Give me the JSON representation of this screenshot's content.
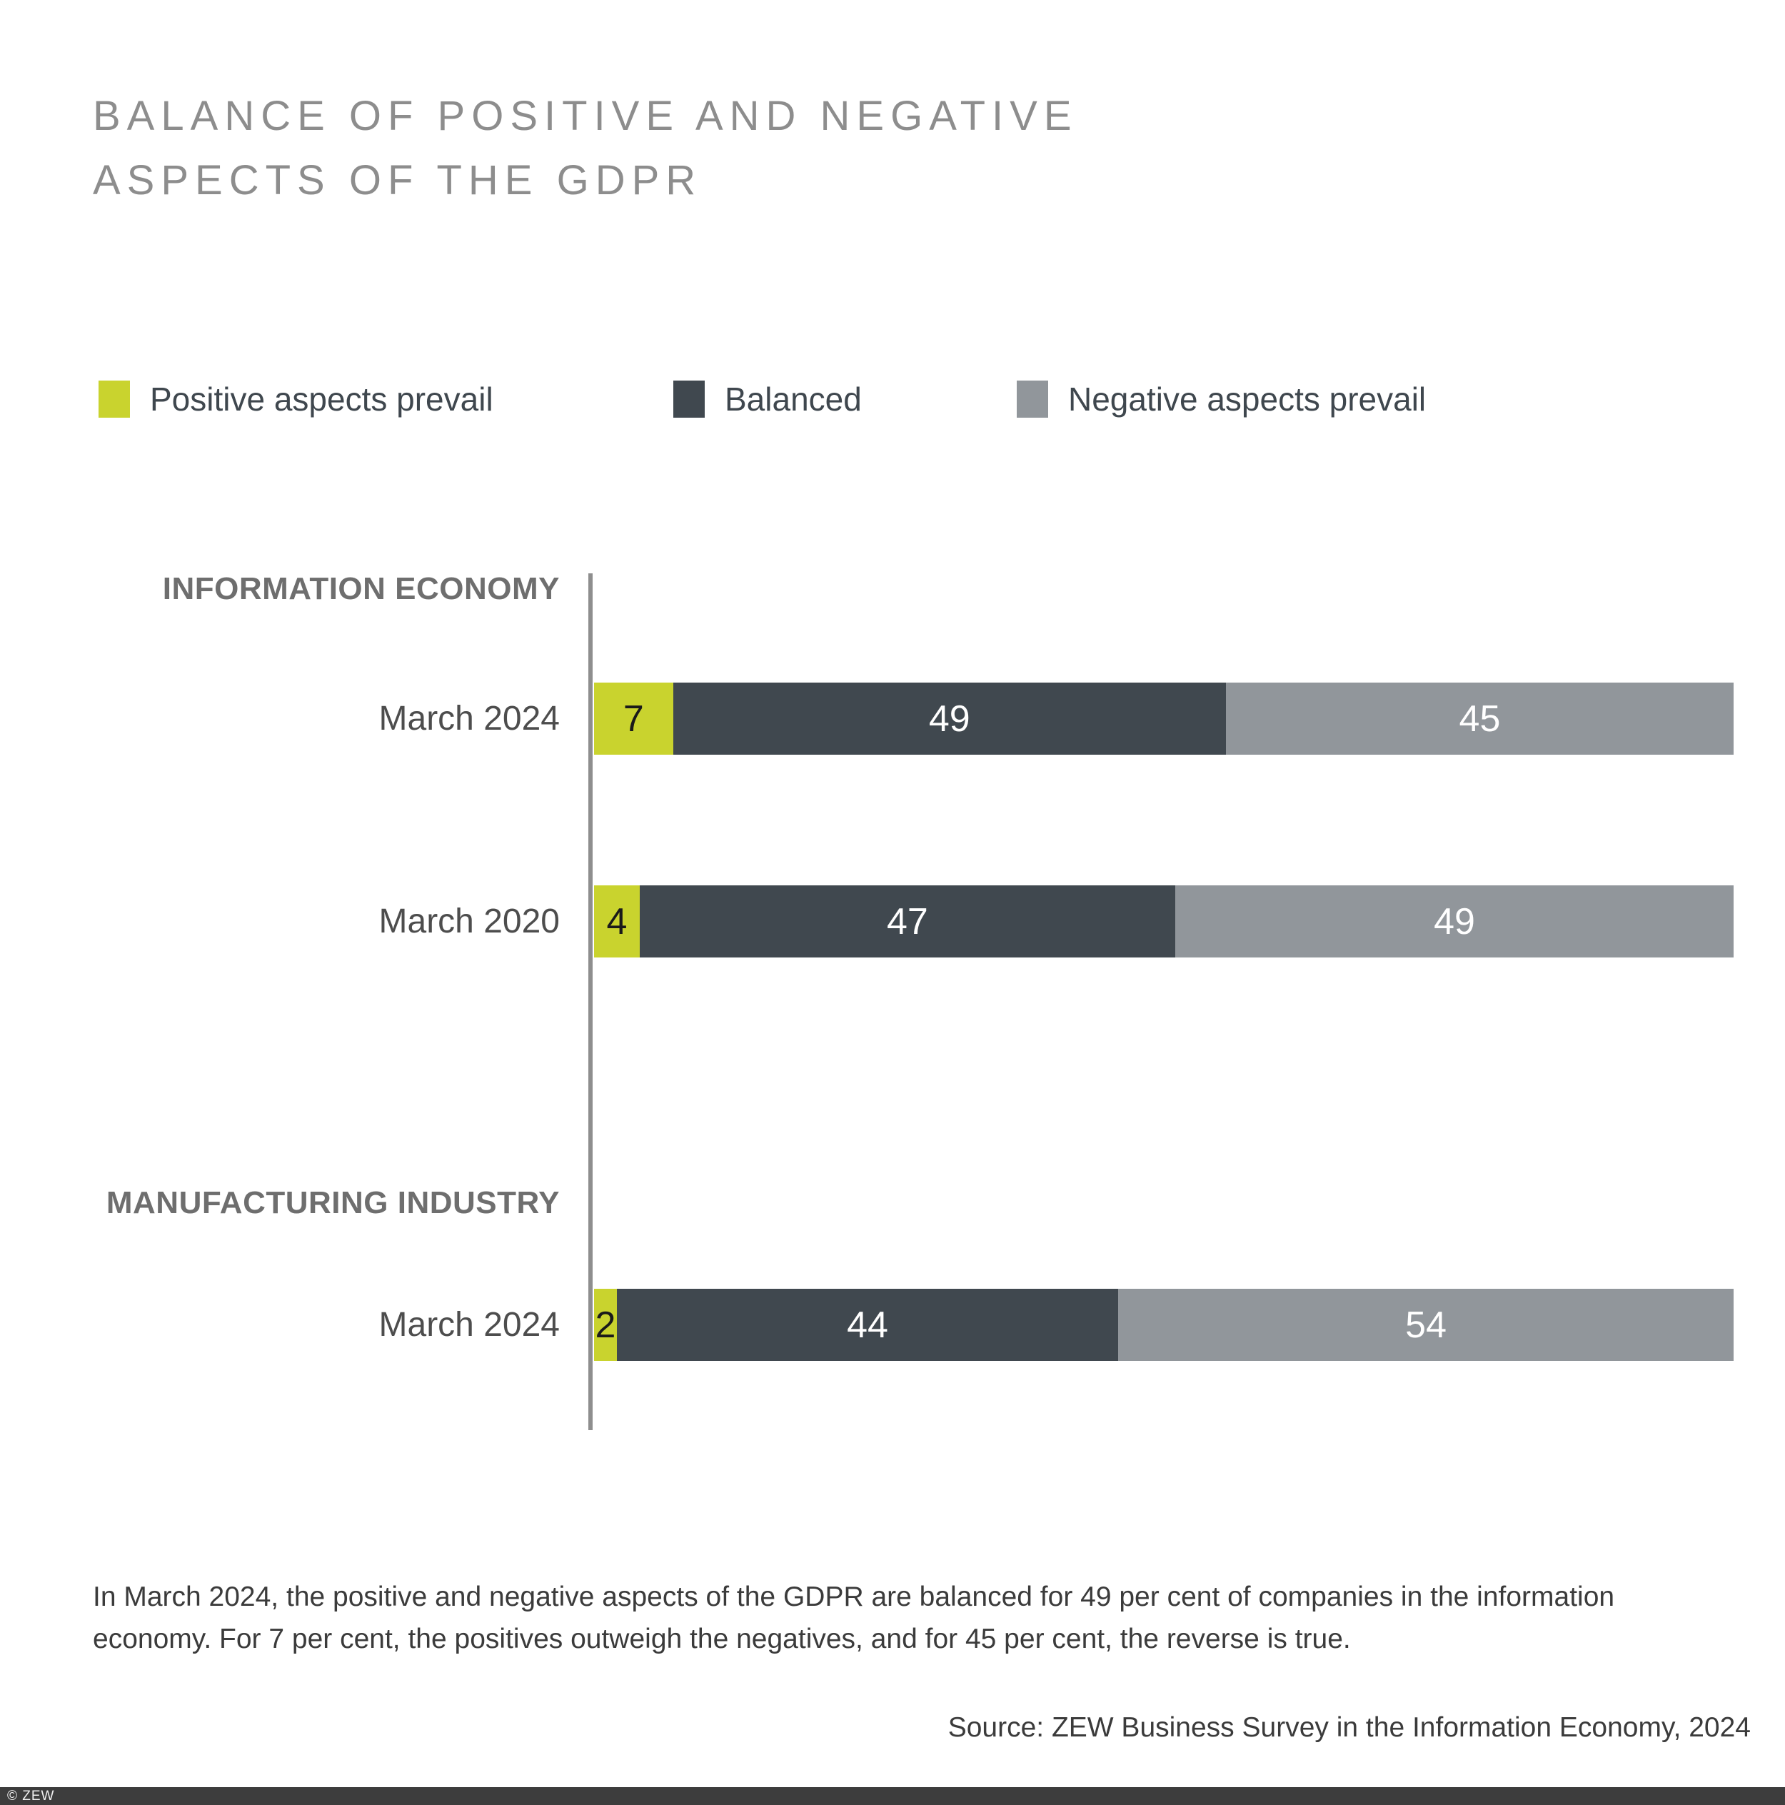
{
  "title": {
    "line1": "BALANCE OF POSITIVE AND NEGATIVE",
    "line2": "ASPECTS OF THE GDPR"
  },
  "legend": [
    {
      "label": "Positive aspects prevail",
      "color": "#c9d32e"
    },
    {
      "label": "Balanced",
      "color": "#40484f"
    },
    {
      "label": "Negative aspects prevail",
      "color": "#91969b"
    }
  ],
  "chart_data": {
    "type": "bar",
    "orientation": "horizontal",
    "stacked": true,
    "unit": "per cent",
    "series": [
      "Positive aspects prevail",
      "Balanced",
      "Negative aspects prevail"
    ],
    "colors": [
      "#c9d32e",
      "#40484f",
      "#91969b"
    ],
    "value_text_colors": [
      "#1a1a1a",
      "#ffffff",
      "#ffffff"
    ],
    "axis_color": "#8e8e8e",
    "legend_position": "top",
    "grid": false,
    "groups": [
      {
        "section": "INFORMATION ECONOMY",
        "rows": [
          {
            "label": "March 2024",
            "values": [
              7,
              49,
              45
            ]
          },
          {
            "label": "March 2020",
            "values": [
              4,
              47,
              49
            ]
          }
        ]
      },
      {
        "section": "MANUFACTURING INDUSTRY",
        "rows": [
          {
            "label": "March 2024",
            "values": [
              2,
              44,
              54
            ]
          }
        ]
      }
    ]
  },
  "caption": {
    "line1": "In March 2024, the positive and negative aspects of the GDPR are balanced for 49 per cent of companies in the information",
    "line2": "economy. For 7 per cent, the positives outweigh the negatives, and for 45 per cent, the reverse is true."
  },
  "source": "Source: ZEW Business Survey in the Information Economy, 2024",
  "footer": {
    "copyright": "© ZEW"
  }
}
